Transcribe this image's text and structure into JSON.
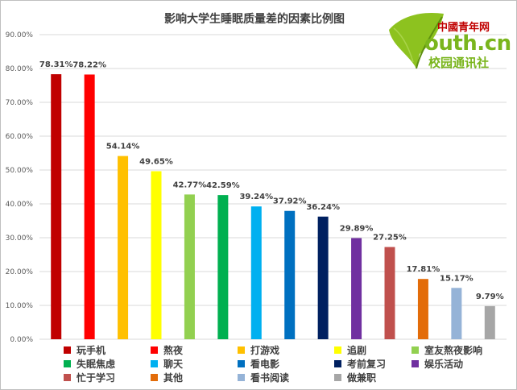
{
  "chart_data": {
    "type": "bar",
    "title": "影响大学生睡眠质量差的因素比例图",
    "categories": [
      "玩手机",
      "熬夜",
      "打游戏",
      "追剧",
      "室友熬夜影响",
      "失眠焦虑",
      "聊天",
      "看电影",
      "考前复习",
      "娱乐活动",
      "忙于学习",
      "其他",
      "看书阅读",
      "做兼职"
    ],
    "values": [
      78.31,
      78.22,
      54.14,
      49.65,
      42.77,
      42.59,
      39.24,
      37.92,
      36.24,
      29.89,
      27.25,
      17.81,
      15.17,
      9.79
    ],
    "value_labels": [
      "78.31%",
      "78.22%",
      "54.14%",
      "49.65%",
      "42.77%",
      "42.59%",
      "39.24%",
      "37.92%",
      "36.24%",
      "29.89%",
      "27.25%",
      "17.81%",
      "15.17%",
      "9.79%"
    ],
    "colors": [
      "#c00000",
      "#ff0000",
      "#ffc000",
      "#ffff00",
      "#92d050",
      "#00b050",
      "#00b0f0",
      "#0070c0",
      "#002060",
      "#7030a0",
      "#c0504d",
      "#e36c09",
      "#95b3d7",
      "#a6a6a6"
    ],
    "ylim": [
      0,
      90
    ],
    "y_ticks": [
      "0.00%",
      "10.00%",
      "20.00%",
      "30.00%",
      "40.00%",
      "50.00%",
      "60.00%",
      "70.00%",
      "80.00%",
      "90.00%"
    ],
    "grid": true,
    "legend_position": "bottom"
  },
  "logo": {
    "badge": "中國青年网",
    "domain": "outh.cn",
    "subtitle": "校园通讯社"
  }
}
